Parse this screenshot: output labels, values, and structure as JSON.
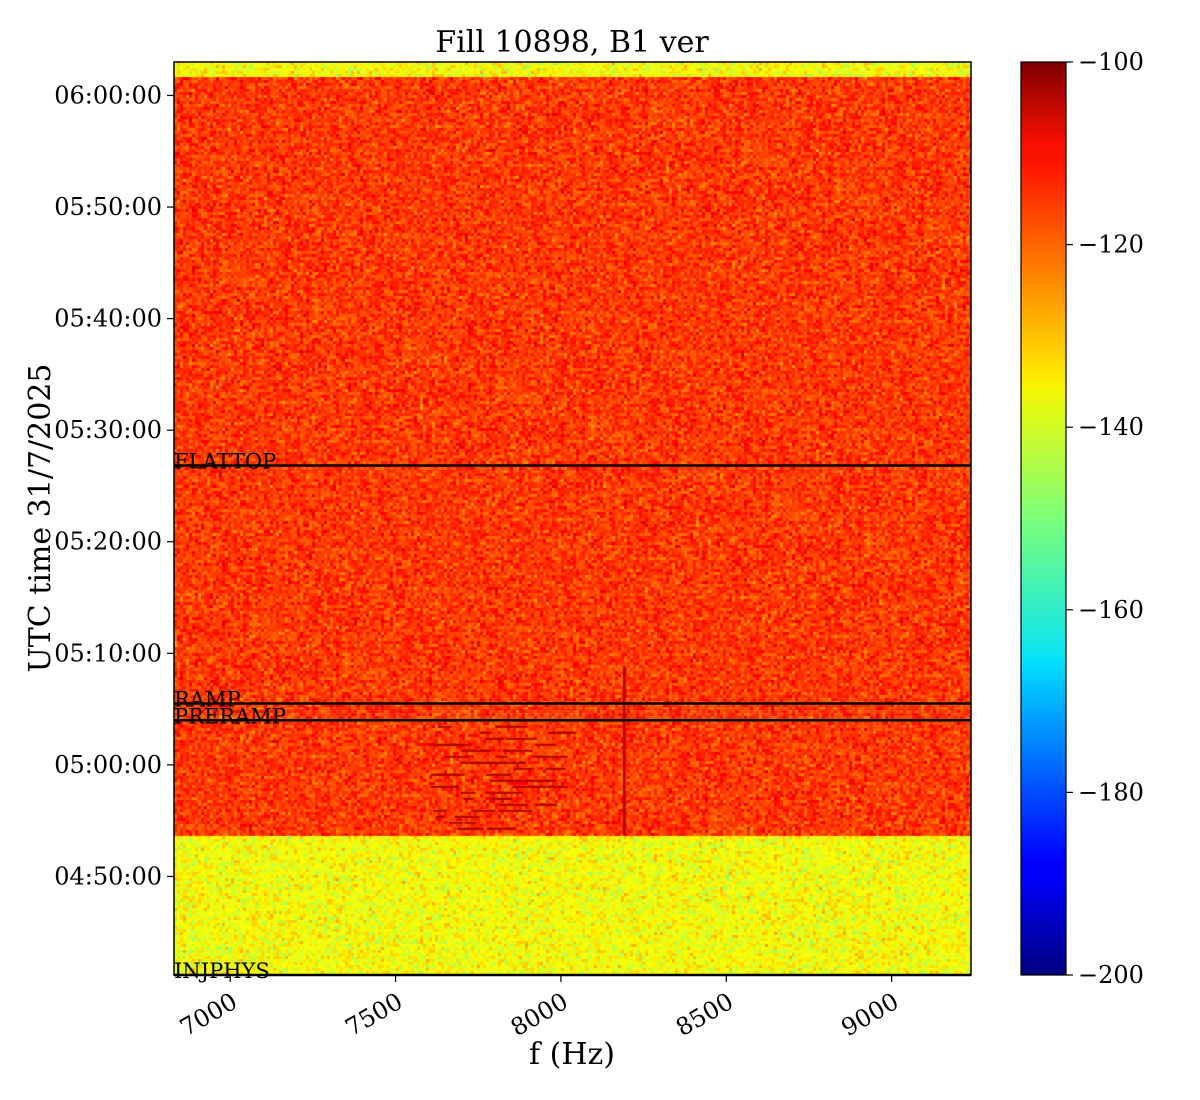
{
  "chart_data": {
    "type": "heatmap",
    "title": "Fill 10898, B1 ver",
    "xlabel": "f (Hz)",
    "ylabel": "UTC time 31/7/2025",
    "xlim": [
      6830,
      9240
    ],
    "ylim_seconds_labels": [
      "04:41:10",
      "06:03:00"
    ],
    "x_ticks": [
      7000,
      7500,
      8000,
      8500,
      9000
    ],
    "x_tick_labels": [
      "7000",
      "7500",
      "8000",
      "8500",
      "9000"
    ],
    "y_tick_labels": [
      "04:50:00",
      "05:00:00",
      "05:10:00",
      "05:20:00",
      "05:30:00",
      "05:40:00",
      "05:50:00",
      "06:00:00"
    ],
    "colorbar": {
      "colormap": "jet",
      "range": [
        -200,
        -100
      ],
      "ticks": [
        -100,
        -120,
        -140,
        -160,
        -180,
        -200
      ],
      "tick_labels": [
        "−100",
        "−120",
        "−140",
        "−160",
        "−180",
        "−200"
      ]
    },
    "regions": [
      {
        "from": "04:41:10",
        "to": "04:53:40",
        "level_db": -138
      },
      {
        "from": "04:53:40",
        "to": "06:01:40",
        "level_db": -118
      },
      {
        "from": "06:01:40",
        "to": "06:03:00",
        "level_db": -138
      }
    ],
    "features": [
      {
        "kind": "vertical_line",
        "freq_hz": 8190,
        "from": "04:53:40",
        "to": "05:08:50",
        "level_db": -106
      },
      {
        "kind": "dash_cluster",
        "freq_range_hz": [
          7600,
          8050
        ],
        "from": "04:54:00",
        "to": "05:03:30",
        "level_db": -105
      }
    ],
    "markers": [
      {
        "label": "FLATTOP",
        "time": "05:26:50"
      },
      {
        "label": "RAMP",
        "time": "05:05:30"
      },
      {
        "label": "PRERAMP",
        "time": "05:04:00"
      },
      {
        "label": "INJPHYS",
        "time": "04:41:10"
      }
    ]
  }
}
